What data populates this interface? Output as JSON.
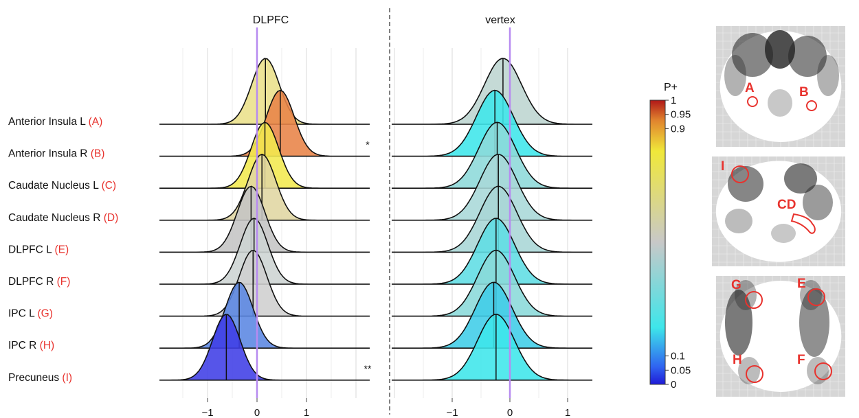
{
  "chart_data": {
    "type": "ridgeline",
    "panels": [
      {
        "title": "DLPFC",
        "xlim": [
          -2.0,
          2.3
        ],
        "xticks": [
          -1,
          0,
          1
        ],
        "xtick_labels": [
          "−1",
          "0",
          "1"
        ]
      },
      {
        "title": "vertex",
        "xlim": [
          -2.2,
          1.7
        ],
        "xticks": [
          -1,
          0,
          1
        ],
        "xtick_labels": [
          "−1",
          "0",
          "1"
        ]
      }
    ],
    "reference_line": 0,
    "regions": [
      {
        "name": "Anterior Insula L",
        "tag": "(A)",
        "dlpfc": {
          "median": 0.17,
          "sd": 0.28,
          "color": "#ebe08a"
        },
        "vertex": {
          "median": -0.12,
          "sd": 0.32,
          "color": "#bdd5d0"
        },
        "sig": ""
      },
      {
        "name": "Anterior Insula R",
        "tag": "(B)",
        "dlpfc": {
          "median": 0.47,
          "sd": 0.28,
          "color": "#e88347"
        },
        "vertex": {
          "median": -0.26,
          "sd": 0.32,
          "color": "#3ee6ea"
        },
        "sig": "*"
      },
      {
        "name": "Caudate Nucleus L",
        "tag": "(C)",
        "dlpfc": {
          "median": 0.16,
          "sd": 0.28,
          "color": "#f2e94e"
        },
        "vertex": {
          "median": -0.22,
          "sd": 0.32,
          "color": "#8ddada"
        },
        "sig": ""
      },
      {
        "name": "Caudate Nucleus R",
        "tag": "(D)",
        "dlpfc": {
          "median": 0.1,
          "sd": 0.28,
          "color": "#e0d6a2"
        },
        "vertex": {
          "median": -0.2,
          "sd": 0.32,
          "color": "#a8d8d8"
        },
        "sig": ""
      },
      {
        "name": "DLPFC L",
        "tag": "(E)",
        "dlpfc": {
          "median": -0.12,
          "sd": 0.28,
          "color": "#c4c4c4"
        },
        "vertex": {
          "median": -0.2,
          "sd": 0.32,
          "color": "#a9d6d6"
        },
        "sig": ""
      },
      {
        "name": "DLPFC R",
        "tag": "(F)",
        "dlpfc": {
          "median": -0.06,
          "sd": 0.28,
          "color": "#cdd4d3"
        },
        "vertex": {
          "median": -0.24,
          "sd": 0.32,
          "color": "#5fdde4"
        },
        "sig": ""
      },
      {
        "name": "IPC L",
        "tag": "(G)",
        "dlpfc": {
          "median": -0.08,
          "sd": 0.28,
          "color": "#cfcfcf"
        },
        "vertex": {
          "median": -0.24,
          "sd": 0.32,
          "color": "#8ad9da"
        },
        "sig": ""
      },
      {
        "name": "IPC R",
        "tag": "(H)",
        "dlpfc": {
          "median": -0.36,
          "sd": 0.28,
          "color": "#5a86e3"
        },
        "vertex": {
          "median": -0.28,
          "sd": 0.32,
          "color": "#3fcde8"
        },
        "sig": ""
      },
      {
        "name": "Precuneus",
        "tag": "(I)",
        "dlpfc": {
          "median": -0.62,
          "sd": 0.28,
          "color": "#3f3ee6"
        },
        "vertex": {
          "median": -0.24,
          "sd": 0.32,
          "color": "#3ee6ea"
        },
        "sig": "**"
      }
    ],
    "colorbar": {
      "title": "P+",
      "ticks": [
        {
          "label": "1",
          "value": 1
        },
        {
          "label": "0.95",
          "value": 0.95
        },
        {
          "label": "0.9",
          "value": 0.9
        },
        {
          "label": "0.1",
          "value": 0.1
        },
        {
          "label": "0.05",
          "value": 0.05
        },
        {
          "label": "0",
          "value": 0
        }
      ],
      "colors": [
        "#1f1ad6",
        "#2f62f0",
        "#3ee6ea",
        "#c8c8c8",
        "#f0e83a",
        "#e0832e",
        "#b01818"
      ]
    },
    "brain_views": [
      {
        "view": "coronal",
        "labels": [
          "A",
          "B"
        ]
      },
      {
        "view": "sagittal",
        "labels": [
          "I",
          "CD"
        ]
      },
      {
        "view": "axial",
        "labels": [
          "G",
          "E",
          "H",
          "F"
        ]
      }
    ],
    "colors": {
      "tag": "#e8332e",
      "reference": "#b78af0",
      "marker": "#e8332e"
    }
  }
}
